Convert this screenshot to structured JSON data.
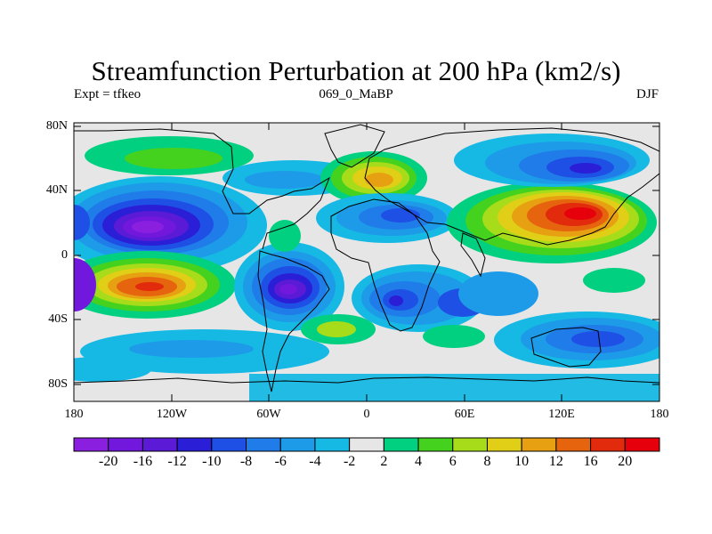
{
  "title": "Streamfunction Perturbation at 200 hPa (km2/s)",
  "subtitle_left": "Expt = tfkeo",
  "subtitle_center": "069_0_MaBP",
  "subtitle_right": "DJF",
  "lat_labels": [
    "80N",
    "40N",
    "0",
    "40S",
    "80S"
  ],
  "lon_labels": [
    "180",
    "120W",
    "60W",
    "0",
    "60E",
    "120E",
    "180"
  ],
  "colorbar": {
    "labels": [
      "-20",
      "-16",
      "-12",
      "-10",
      "-8",
      "-6",
      "-4",
      "-2",
      "2",
      "4",
      "6",
      "8",
      "10",
      "12",
      "16",
      "20"
    ],
    "colors": [
      "#8a1fe0",
      "#7118dc",
      "#5a1ad6",
      "#2a1fd6",
      "#1e50e6",
      "#1f7ce8",
      "#1d9be8",
      "#16b8e4",
      "#e6e6e6",
      "#00d080",
      "#45d21f",
      "#a6dc1a",
      "#e0cf16",
      "#e6a012",
      "#e6640e",
      "#e22a0c",
      "#e6000c"
    ]
  },
  "map_data": {
    "contour_field": "streamfunction perturbation (km2/s)",
    "level_hPa": 200,
    "lon_range": [
      -180,
      180
    ],
    "lat_range": [
      -90,
      90
    ],
    "features": [
      {
        "name": "negative-center-north-pacific",
        "lon": -130,
        "lat": 25,
        "value": -20
      },
      {
        "name": "positive-center-south-pacific",
        "lon": -130,
        "lat": -20,
        "value": 16
      },
      {
        "name": "negative-center-south-america",
        "lon": -45,
        "lat": -22,
        "value": -20
      },
      {
        "name": "positive-center-asia",
        "lon": 115,
        "lat": 25,
        "value": 20
      },
      {
        "name": "negative-center-siberia",
        "lon": 130,
        "lat": 52,
        "value": -10
      },
      {
        "name": "positive-center-europe",
        "lon": 15,
        "lat": 45,
        "value": 12
      },
      {
        "name": "negative-center-africa",
        "lon": 20,
        "lat": 25,
        "value": -10
      },
      {
        "name": "negative-center-south-africa",
        "lon": 20,
        "lat": -28,
        "value": -12
      },
      {
        "name": "negative-center-south-indian",
        "lon": 130,
        "lat": -50,
        "value": -12
      }
    ]
  }
}
